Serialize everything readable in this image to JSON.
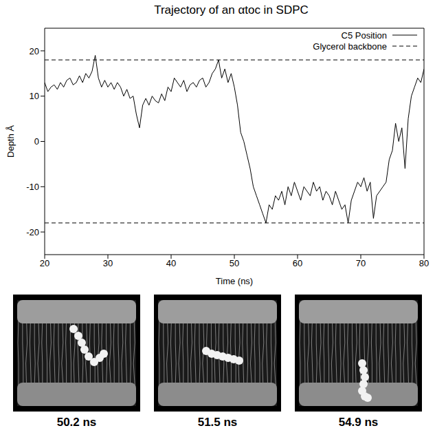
{
  "chart_data": {
    "type": "line",
    "title": "Trajectory of an αtoc in SDPC",
    "x_label": "Time (ns)",
    "y_label": "Depth Å",
    "xlim": [
      20,
      80
    ],
    "xticks": [
      20,
      30,
      40,
      50,
      60,
      70,
      80
    ],
    "ylim": [
      -25,
      25
    ],
    "yticks": [
      -20,
      -10,
      0,
      10,
      20
    ],
    "grid": false,
    "legend": "upper right",
    "x": [
      20,
      20.5,
      21,
      21.5,
      22,
      22.5,
      23,
      23.5,
      24,
      24.5,
      25,
      25.5,
      26,
      26.5,
      27,
      27.5,
      28,
      28.5,
      29,
      29.5,
      30,
      30.5,
      31,
      31.5,
      32,
      32.5,
      33,
      33.5,
      34,
      34.5,
      35,
      35.5,
      36,
      36.5,
      37,
      37.5,
      38,
      38.5,
      39,
      39.5,
      40,
      40.5,
      41,
      41.5,
      42,
      42.5,
      43,
      43.5,
      44,
      44.5,
      45,
      45.5,
      46,
      46.5,
      47,
      47.5,
      48,
      48.5,
      49,
      49.5,
      50,
      50.5,
      51,
      51.5,
      52,
      52.5,
      53,
      53.5,
      54,
      54.5,
      55,
      55.5,
      56,
      56.5,
      57,
      57.5,
      58,
      58.5,
      59,
      59.5,
      60,
      60.5,
      61,
      61.5,
      62,
      62.5,
      63,
      63.5,
      64,
      64.5,
      65,
      65.5,
      66,
      66.5,
      67,
      67.5,
      68,
      68.5,
      69,
      69.5,
      70,
      70.5,
      71,
      71.5,
      72,
      72.5,
      73,
      73.5,
      74,
      74.5,
      75,
      75.5,
      76,
      76.5,
      77,
      77.5,
      78,
      78.5,
      79,
      79.5,
      80
    ],
    "series": [
      {
        "name": "C5 Position",
        "color": "#000000",
        "line_style": "solid",
        "values": [
          13,
          11,
          12,
          12.5,
          11.5,
          13,
          12,
          13.5,
          14,
          12.5,
          13,
          14.5,
          13,
          15,
          14,
          15.5,
          19,
          14,
          12,
          13.5,
          12,
          13,
          11.5,
          13,
          12,
          10,
          11.5,
          9.5,
          10,
          6,
          3,
          8,
          9.5,
          8,
          10,
          9,
          8.5,
          10.5,
          9,
          12,
          11,
          14,
          13,
          12,
          13.5,
          11,
          12.5,
          13,
          12,
          13.5,
          14,
          12,
          13,
          15,
          16,
          18,
          14,
          16,
          13,
          15,
          12,
          8,
          2,
          0,
          -3,
          -6,
          -10,
          -12,
          -14,
          -16,
          -18,
          -14,
          -15,
          -12,
          -13,
          -11,
          -14,
          -10,
          -12,
          -9,
          -11,
          -13,
          -10,
          -11,
          -12,
          -9,
          -11,
          -10,
          -13,
          -11,
          -12,
          -14,
          -11,
          -13,
          -15,
          -14,
          -18,
          -13,
          -11,
          -9,
          -10,
          -8,
          -11,
          -9,
          -17,
          -12,
          -11,
          -10,
          -9,
          -4,
          -2,
          4,
          0,
          3,
          -6,
          5,
          10,
          12,
          14,
          13,
          16
        ]
      }
    ],
    "hlines": {
      "name": "Glycerol backbone",
      "color": "#000000",
      "line_style": "dashed",
      "values": [
        18,
        -18
      ]
    }
  },
  "panels": [
    {
      "caption": "50.2 ns"
    },
    {
      "caption": "51.5 ns"
    },
    {
      "caption": "54.9 ns"
    }
  ]
}
